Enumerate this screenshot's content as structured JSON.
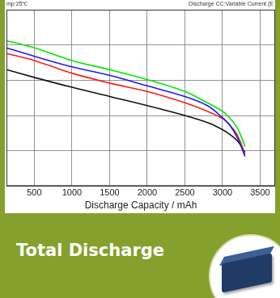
{
  "chart_data": {
    "type": "line",
    "title": "Total Discharge",
    "annotations": [
      "mp:25℃",
      "Discharge CC:Variable Current (E"
    ],
    "x_label": "Discharge Capacity / mAh",
    "x": [
      130,
      500,
      1000,
      1500,
      2000,
      2500,
      2800,
      3000,
      3100,
      3200,
      3300
    ],
    "series": [
      {
        "color": "#00e600",
        "values": [
          4.06,
          3.96,
          3.78,
          3.65,
          3.51,
          3.34,
          3.18,
          3.06,
          2.96,
          2.82,
          2.56
        ]
      },
      {
        "color": "#1a1aff",
        "values": [
          3.96,
          3.84,
          3.69,
          3.57,
          3.42,
          3.27,
          3.14,
          2.97,
          2.86,
          2.68,
          2.42
        ]
      },
      {
        "color": "#ff1a1a",
        "values": [
          3.88,
          3.78,
          3.6,
          3.46,
          3.34,
          3.18,
          3.06,
          2.96,
          2.86,
          2.72,
          2.45
        ]
      },
      {
        "color": "#111111",
        "values": [
          3.65,
          3.54,
          3.4,
          3.27,
          3.14,
          3.0,
          2.9,
          2.8,
          2.73,
          2.64,
          2.48
        ]
      }
    ],
    "xlim": [
      130,
      3700
    ],
    "xticks": [
      500,
      1000,
      1500,
      2000,
      2500,
      3000,
      3500
    ],
    "ylim": [
      2.0,
      4.5
    ],
    "yticks": [
      2.0,
      2.5,
      3.0,
      3.5,
      4.0,
      4.5
    ],
    "grid": true,
    "tick_labels": "x"
  }
}
